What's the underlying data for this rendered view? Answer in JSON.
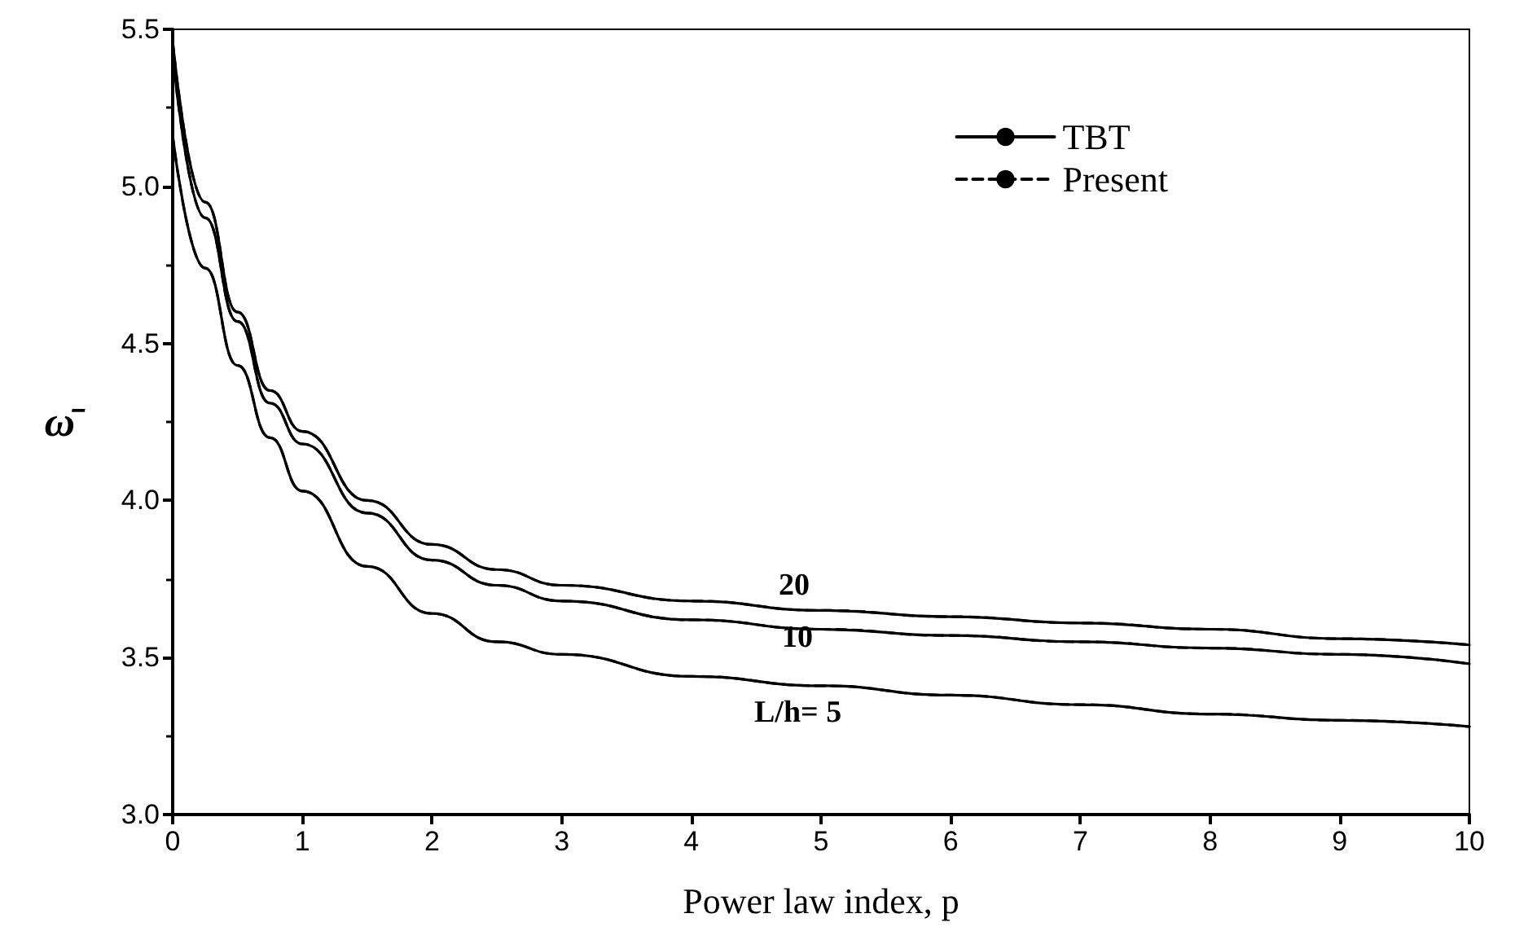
{
  "chart_data": {
    "type": "line",
    "xlabel": "Power law index, p",
    "ylabel": "ω̄",
    "x": [
      0,
      0.25,
      0.5,
      0.75,
      1,
      1.5,
      2,
      2.5,
      3,
      4,
      5,
      6,
      7,
      8,
      9,
      10
    ],
    "series": [
      {
        "name": "TBT",
        "color": "#000000",
        "line_style": "solid",
        "values": [
          5.46,
          4.95,
          4.6,
          4.35,
          4.22,
          4.0,
          3.86,
          3.78,
          3.73,
          3.68,
          3.65,
          3.63,
          3.61,
          3.59,
          3.56,
          3.54
        ]
      },
      {
        "color": "#000000",
        "line_style": "solid",
        "values": [
          5.42,
          4.9,
          4.57,
          4.31,
          4.18,
          3.96,
          3.81,
          3.73,
          3.68,
          3.62,
          3.59,
          3.57,
          3.55,
          3.53,
          3.51,
          3.48
        ]
      },
      {
        "color": "#000000",
        "line_style": "solid",
        "values": [
          5.16,
          4.74,
          4.43,
          4.2,
          4.03,
          3.79,
          3.64,
          3.55,
          3.51,
          3.44,
          3.41,
          3.38,
          3.35,
          3.32,
          3.3,
          3.28
        ]
      },
      {
        "name": "Present",
        "color": "#000000",
        "line_style": "dashed",
        "values": [
          5.46,
          4.95,
          4.6,
          4.35,
          4.22,
          4.0,
          3.86,
          3.78,
          3.73,
          3.68,
          3.65,
          3.63,
          3.61,
          3.59,
          3.56,
          3.54
        ]
      },
      {
        "color": "#000000",
        "line_style": "dashed",
        "values": [
          5.42,
          4.9,
          4.57,
          4.31,
          4.18,
          3.96,
          3.81,
          3.73,
          3.68,
          3.62,
          3.59,
          3.57,
          3.55,
          3.53,
          3.51,
          3.48
        ]
      },
      {
        "color": "#000000",
        "line_style": "dashed",
        "values": [
          5.16,
          4.74,
          4.43,
          4.2,
          4.03,
          3.79,
          3.64,
          3.55,
          3.51,
          3.44,
          3.41,
          3.38,
          3.35,
          3.32,
          3.3,
          3.28
        ]
      }
    ],
    "annotations": [
      "20",
      "10",
      "L/h= 5"
    ],
    "xlim": [
      0,
      10
    ],
    "xticks": [
      0,
      1,
      2,
      3,
      4,
      5,
      6,
      7,
      8,
      9,
      10
    ],
    "ylim": [
      3.0,
      5.5
    ],
    "yticks": [
      {
        "value": 3.0,
        "label": "3.0"
      },
      3.5,
      {
        "value": 4.0,
        "label": "4.0"
      },
      4.5,
      {
        "value": 5.0,
        "label": "5.0"
      },
      5.5
    ],
    "grid": false,
    "legend": "top right",
    "marker": "none"
  }
}
